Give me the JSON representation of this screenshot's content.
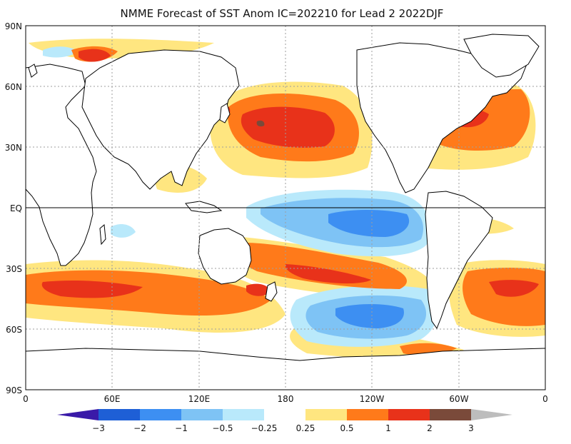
{
  "title": "NMME Forecast of SST Anom IC=202210 for Lead 2 2022DJF",
  "axes": {
    "y_ticks": [
      "90N",
      "60N",
      "30N",
      "EQ",
      "30S",
      "60S",
      "90S"
    ],
    "x_ticks": [
      "0",
      "60E",
      "120E",
      "180",
      "120W",
      "60W",
      "0"
    ]
  },
  "colorbar": {
    "labels": [
      "−3",
      "−2",
      "−1",
      "−0.5",
      "−0.25",
      "0.25",
      "0.5",
      "1",
      "2",
      "3"
    ],
    "colors": [
      "#3a1aa8",
      "#1e5fd6",
      "#3d8ff2",
      "#7ec3f5",
      "#b9e9fb",
      "#ffffff",
      "#ffe680",
      "#ff7a1a",
      "#e8321a",
      "#c81e1e",
      "#7a4a3a",
      "#bdbdbd"
    ]
  },
  "palette": {
    "ocean": "#ffffff",
    "land_outline": "#000000",
    "grid": "#9e9e9e",
    "light_blue": "#b9e9fb",
    "mid_blue": "#7ec3f5",
    "blue": "#3d8ff2",
    "yellow": "#ffe680",
    "orange": "#ff7a1a",
    "red": "#e8321a",
    "brown": "#7a4a3a",
    "gray": "#bdbdbd"
  }
}
